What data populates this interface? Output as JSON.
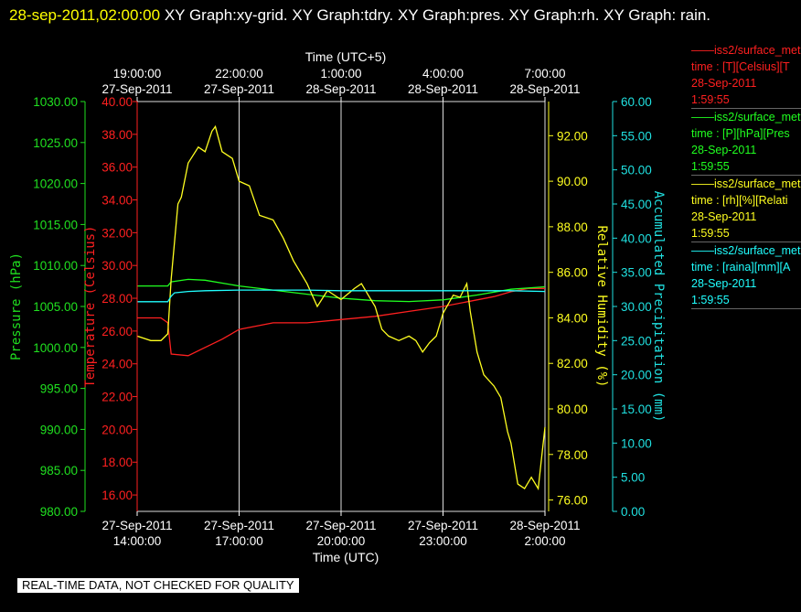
{
  "header": {
    "timestamp": "28-sep-2011,02:00:00",
    "graph_list": "XY Graph:xy-grid.  XY Graph:tdry.  XY Graph:pres.  XY Graph:rh.  XY Graph: rain."
  },
  "legend": [
    {
      "line1": "iss2/surface_met",
      "line2": "time : [T][Celsius][T",
      "line3": "28-Sep-2011",
      "line4": "1:59:55",
      "color": "#ff2020"
    },
    {
      "line1": "iss2/surface_met",
      "line2": "time : [P][hPa][Pres",
      "line3": "28-Sep-2011",
      "line4": "1:59:55",
      "color": "#20ff20"
    },
    {
      "line1": "iss2/surface_met",
      "line2": "time : [rh][%][Relati",
      "line3": "28-Sep-2011",
      "line4": "1:59:55",
      "color": "#ffff20"
    },
    {
      "line1": "iss2/surface_met",
      "line2": "time : [raina][mm][A",
      "line3": "28-Sep-2011",
      "line4": "1:59:55",
      "color": "#20ffff"
    }
  ],
  "disclaimer": "REAL-TIME DATA, NOT CHECKED FOR QUALITY",
  "chart_data": {
    "type": "line",
    "top_axis_title": "Time (UTC+5)",
    "bottom_axis_title": "Time (UTC)",
    "x_range": [
      "2011-09-27T14:00:00",
      "2011-09-28T02:00:00"
    ],
    "grid": true,
    "top_ticks": [
      {
        "time": "19:00:00",
        "date": "27-Sep-2011"
      },
      {
        "time": "22:00:00",
        "date": "27-Sep-2011"
      },
      {
        "time": "1:00:00",
        "date": "28-Sep-2011"
      },
      {
        "time": "4:00:00",
        "date": "28-Sep-2011"
      },
      {
        "time": "7:00:00",
        "date": "28-Sep-2011"
      }
    ],
    "bottom_ticks": [
      {
        "date": "27-Sep-2011",
        "time": "14:00:00"
      },
      {
        "date": "27-Sep-2011",
        "time": "17:00:00"
      },
      {
        "date": "27-Sep-2011",
        "time": "20:00:00"
      },
      {
        "date": "27-Sep-2011",
        "time": "23:00:00"
      },
      {
        "date": "28-Sep-2011",
        "time": "2:00:00"
      }
    ],
    "axes": {
      "pressure": {
        "label": "Pressure (hPa)",
        "color": "#20e020",
        "ylim": [
          980,
          1030
        ],
        "ticks": [
          "1030.00",
          "1025.00",
          "1020.00",
          "1015.00",
          "1010.00",
          "1005.00",
          "1000.00",
          "995.00",
          "990.00",
          "985.00",
          "980.00"
        ]
      },
      "temperature": {
        "label": "Temperature (Celsius)",
        "color": "#ff2020",
        "ylim": [
          15,
          40
        ],
        "ticks": [
          "40.00",
          "38.00",
          "36.00",
          "34.00",
          "32.00",
          "30.00",
          "28.00",
          "26.00",
          "24.00",
          "22.00",
          "20.00",
          "18.00",
          "16.00"
        ]
      },
      "humidity": {
        "label": "Relative Humidity (%)",
        "color": "#ffff20",
        "ylim": [
          75.5,
          93.5
        ],
        "ticks": [
          "92.00",
          "90.00",
          "88.00",
          "86.00",
          "84.00",
          "82.00",
          "80.00",
          "78.00",
          "76.00"
        ]
      },
      "precipitation": {
        "label": "Accumulated Precipitation (mm)",
        "color": "#20e0e0",
        "ylim": [
          0,
          60
        ],
        "ticks": [
          "60.00",
          "55.00",
          "50.00",
          "45.00",
          "40.00",
          "35.00",
          "30.00",
          "25.00",
          "20.00",
          "15.00",
          "10.00",
          "5.00",
          "0.00"
        ]
      }
    },
    "series": [
      {
        "name": "iss2/surface_met T",
        "axis": "temperature",
        "color": "#ff2020",
        "x": [
          14.0,
          14.3,
          14.7,
          14.9,
          15.0,
          15.5,
          16.0,
          16.5,
          17.0,
          18.0,
          19.0,
          20.0,
          21.0,
          22.0,
          23.0,
          24.0,
          24.5,
          25.0,
          25.5,
          26.0
        ],
        "y": [
          26.8,
          26.8,
          26.8,
          26.5,
          24.6,
          24.5,
          25.0,
          25.5,
          26.1,
          26.5,
          26.5,
          26.7,
          26.9,
          27.2,
          27.5,
          27.9,
          28.1,
          28.4,
          28.6,
          28.6
        ]
      },
      {
        "name": "iss2/surface_met P",
        "axis": "pressure",
        "color": "#20ff20",
        "x": [
          14.0,
          14.9,
          15.0,
          15.5,
          16.0,
          17.0,
          18.0,
          19.0,
          20.0,
          21.0,
          22.0,
          23.0,
          24.0,
          25.0,
          26.0
        ],
        "y": [
          1007.5,
          1007.5,
          1008.0,
          1008.3,
          1008.2,
          1007.5,
          1007.0,
          1006.5,
          1006.0,
          1005.7,
          1005.6,
          1005.8,
          1006.4,
          1007.1,
          1007.4
        ]
      },
      {
        "name": "iss2/surface_met rh",
        "axis": "humidity",
        "color": "#ffff20",
        "x": [
          14.0,
          14.4,
          14.7,
          14.9,
          15.0,
          15.2,
          15.3,
          15.5,
          15.8,
          16.0,
          16.2,
          16.3,
          16.5,
          16.8,
          17.0,
          17.3,
          17.6,
          18.0,
          18.3,
          18.6,
          19.0,
          19.3,
          19.6,
          20.0,
          20.4,
          20.6,
          20.8,
          21.0,
          21.2,
          21.4,
          21.7,
          22.0,
          22.2,
          22.4,
          22.6,
          22.8,
          23.0,
          23.3,
          23.5,
          23.7,
          23.8,
          24.0,
          24.2,
          24.5,
          24.7,
          24.9,
          25.0,
          25.2,
          25.4,
          25.6,
          25.8,
          26.0
        ],
        "y": [
          83.2,
          83.0,
          83.0,
          83.3,
          85.7,
          89.0,
          89.3,
          90.8,
          91.5,
          91.3,
          92.2,
          92.4,
          91.3,
          91.0,
          90.0,
          89.8,
          88.5,
          88.3,
          87.5,
          86.5,
          85.5,
          84.5,
          85.2,
          84.8,
          85.3,
          85.5,
          85.0,
          84.5,
          83.5,
          83.2,
          83.0,
          83.2,
          83.0,
          82.5,
          82.9,
          83.2,
          84.2,
          85.0,
          84.9,
          85.5,
          84.3,
          82.5,
          81.5,
          81.0,
          80.5,
          79.0,
          78.5,
          76.7,
          76.5,
          77.0,
          76.5,
          79.2
        ]
      },
      {
        "name": "iss2/surface_met raina",
        "axis": "precipitation",
        "color": "#20ffff",
        "x": [
          14.0,
          14.9,
          15.0,
          15.1,
          15.5,
          16.0,
          17.0,
          18.0,
          19.0,
          20.0,
          21.0,
          22.0,
          23.0,
          24.0,
          25.0,
          26.0
        ],
        "y": [
          30.7,
          30.7,
          31.5,
          32.0,
          32.2,
          32.3,
          32.4,
          32.4,
          32.4,
          32.3,
          32.3,
          32.3,
          32.3,
          32.3,
          32.3,
          32.2
        ]
      }
    ]
  }
}
